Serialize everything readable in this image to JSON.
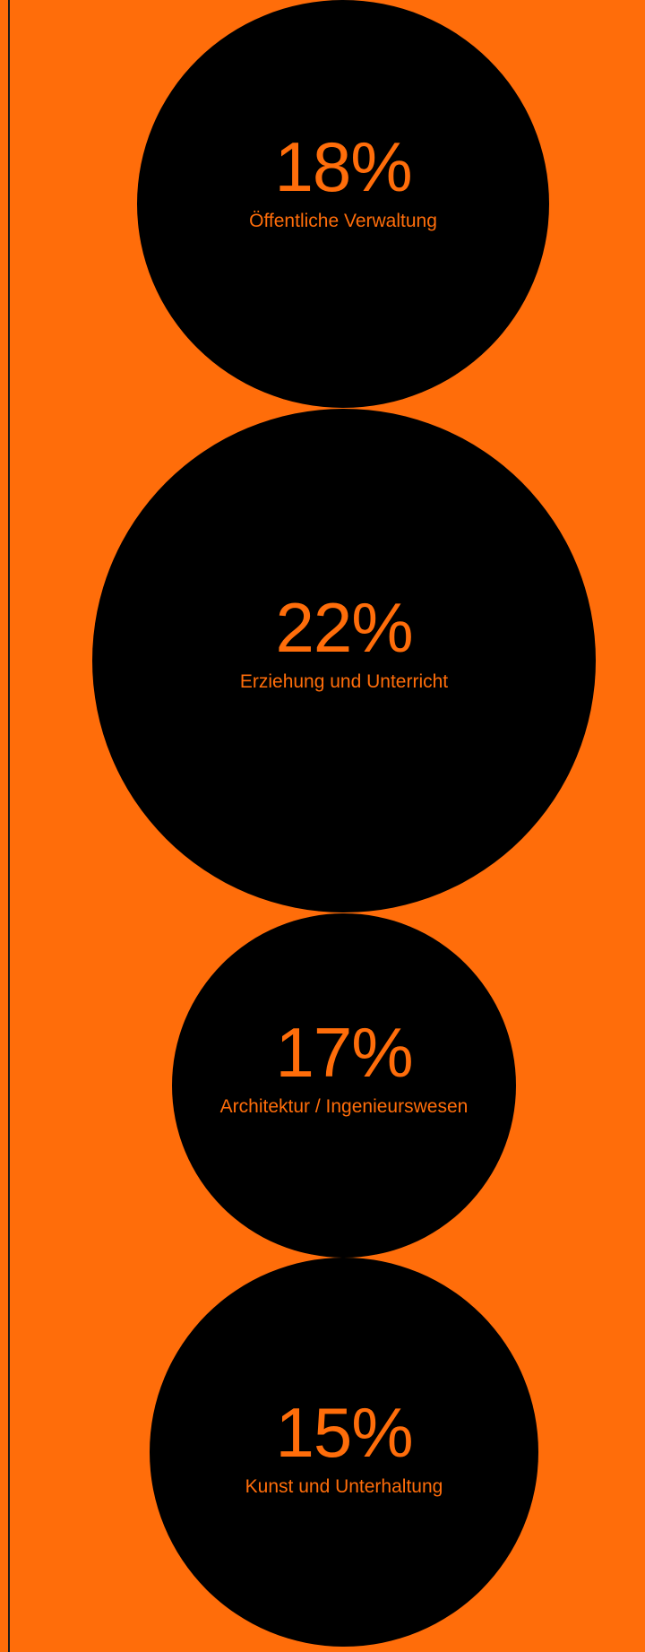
{
  "chart_data": {
    "type": "bubble",
    "items": [
      {
        "value_label": "18%",
        "value": 18,
        "label": "Öffentliche Verwaltung"
      },
      {
        "value_label": "22%",
        "value": 22,
        "label": "Erziehung und Unterricht"
      },
      {
        "value_label": "17%",
        "value": 17,
        "label": "Architektur / Ingenieurswesen"
      },
      {
        "value_label": "15%",
        "value": 15,
        "label": "Kunst und Unterhaltung"
      }
    ]
  },
  "colors": {
    "background": "#ff6d0a",
    "bubble": "#000000",
    "text": "#ff6d0a"
  }
}
